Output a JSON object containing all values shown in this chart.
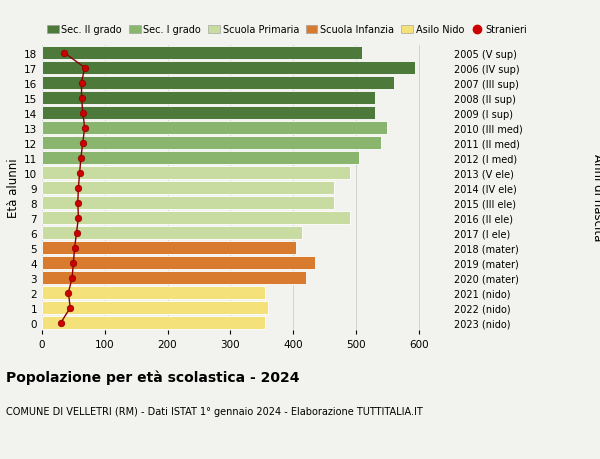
{
  "ages": [
    0,
    1,
    2,
    3,
    4,
    5,
    6,
    7,
    8,
    9,
    10,
    11,
    12,
    13,
    14,
    15,
    16,
    17,
    18
  ],
  "ytick_labels": [
    "0",
    "1",
    "2",
    "3",
    "4",
    "5",
    "6",
    "7",
    "8",
    "9",
    "10",
    "11",
    "12",
    "13",
    "14",
    "15",
    "16",
    "17",
    "18"
  ],
  "right_labels": [
    "2023 (nido)",
    "2022 (nido)",
    "2021 (nido)",
    "2020 (mater)",
    "2019 (mater)",
    "2018 (mater)",
    "2017 (I ele)",
    "2016 (II ele)",
    "2015 (III ele)",
    "2014 (IV ele)",
    "2013 (V ele)",
    "2012 (I med)",
    "2011 (II med)",
    "2010 (III med)",
    "2009 (I sup)",
    "2008 (II sup)",
    "2007 (III sup)",
    "2006 (IV sup)",
    "2005 (V sup)"
  ],
  "bar_values": [
    355,
    360,
    355,
    420,
    435,
    405,
    415,
    490,
    465,
    465,
    490,
    505,
    540,
    550,
    530,
    530,
    560,
    595,
    510
  ],
  "bar_colors": [
    "#f5e17a",
    "#f5e17a",
    "#f5e17a",
    "#d97b2e",
    "#d97b2e",
    "#d97b2e",
    "#c8dba0",
    "#c8dba0",
    "#c8dba0",
    "#c8dba0",
    "#c8dba0",
    "#8ab56e",
    "#8ab56e",
    "#8ab56e",
    "#4d7a3a",
    "#4d7a3a",
    "#4d7a3a",
    "#4d7a3a",
    "#4d7a3a"
  ],
  "stranieri_values": [
    30,
    45,
    42,
    48,
    50,
    52,
    55,
    58,
    57,
    58,
    60,
    62,
    65,
    68,
    65,
    63,
    63,
    68,
    35
  ],
  "legend_labels": [
    "Sec. II grado",
    "Sec. I grado",
    "Scuola Primaria",
    "Scuola Infanzia",
    "Asilo Nido",
    "Stranieri"
  ],
  "legend_colors": [
    "#4d7a3a",
    "#8ab56e",
    "#c8dba0",
    "#d97b2e",
    "#f5e17a",
    "#cc0000"
  ],
  "ylabel_left": "Età alunni",
  "ylabel_right": "Anni di nascita",
  "title": "Popolazione per età scolastica - 2024",
  "subtitle": "COMUNE DI VELLETRI (RM) - Dati ISTAT 1° gennaio 2024 - Elaborazione TUTTITALIA.IT",
  "xlim": [
    0,
    650
  ],
  "xticks": [
    0,
    100,
    200,
    300,
    400,
    500,
    600
  ],
  "background_color": "#f2f2ee",
  "bar_edge_color": "white",
  "grid_color": "#cccccc"
}
